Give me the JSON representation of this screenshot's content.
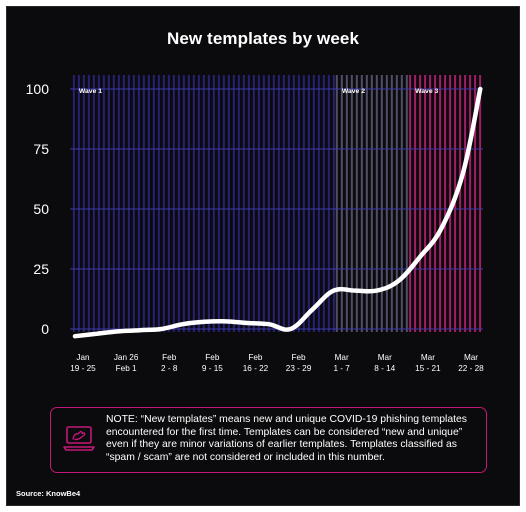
{
  "chart_data": {
    "type": "line",
    "title": "New templates by week",
    "ylim": [
      0,
      100
    ],
    "yticks": [
      0,
      25,
      50,
      75,
      100
    ],
    "x_labels": [
      [
        "Jan",
        "19 - 25"
      ],
      [
        "Jan 26",
        "Feb 1"
      ],
      [
        "Feb",
        "2 - 8"
      ],
      [
        "Feb",
        "9 - 15"
      ],
      [
        "Feb",
        "16 - 22"
      ],
      [
        "Feb",
        "23 - 29"
      ],
      [
        "Mar",
        "1 - 7"
      ],
      [
        "Mar",
        "8 - 14"
      ],
      [
        "Mar",
        "15 - 21"
      ],
      [
        "Mar",
        "22 - 28"
      ]
    ],
    "series": [
      {
        "color": "#ffffff",
        "points": [
          [
            0,
            -3
          ],
          [
            0.5,
            -2
          ],
          [
            1,
            -1
          ],
          [
            1.5,
            -0.5
          ],
          [
            2,
            0
          ],
          [
            2.5,
            2
          ],
          [
            3,
            3
          ],
          [
            3.5,
            3.2
          ],
          [
            4,
            2.5
          ],
          [
            4.5,
            2
          ],
          [
            5,
            0
          ],
          [
            5.5,
            8
          ],
          [
            6,
            16
          ],
          [
            6.5,
            16
          ],
          [
            7,
            16
          ],
          [
            7.5,
            20
          ],
          [
            8,
            30
          ],
          [
            8.5,
            42
          ],
          [
            9,
            65
          ],
          [
            9.4,
            100
          ]
        ]
      }
    ],
    "waves": [
      {
        "label": "Wave 1",
        "start": -0.05,
        "end": 6.05,
        "color": "#2a2380"
      },
      {
        "label": "Wave 2",
        "start": 6.05,
        "end": 7.75,
        "color": "#8a86b0"
      },
      {
        "label": "Wave 3",
        "start": 7.75,
        "end": 9.7,
        "color": "#b0206f"
      }
    ],
    "grid": true,
    "legend": "none"
  },
  "note": "NOTE: “New templates” means new and unique COVID-19 phishing templates encountered for the first time. Templates can be considered “new and unique” even if they are minor variations of earlier templates. Templates classified as “spam / scam” are not considered or included in this number.",
  "source": "Source: KnowBe4",
  "colors": {
    "accent": "#c2187a",
    "background": "#0b0a0c",
    "grid": "#3d3aa8"
  },
  "icons": {
    "note": "laptop-hand-icon"
  }
}
